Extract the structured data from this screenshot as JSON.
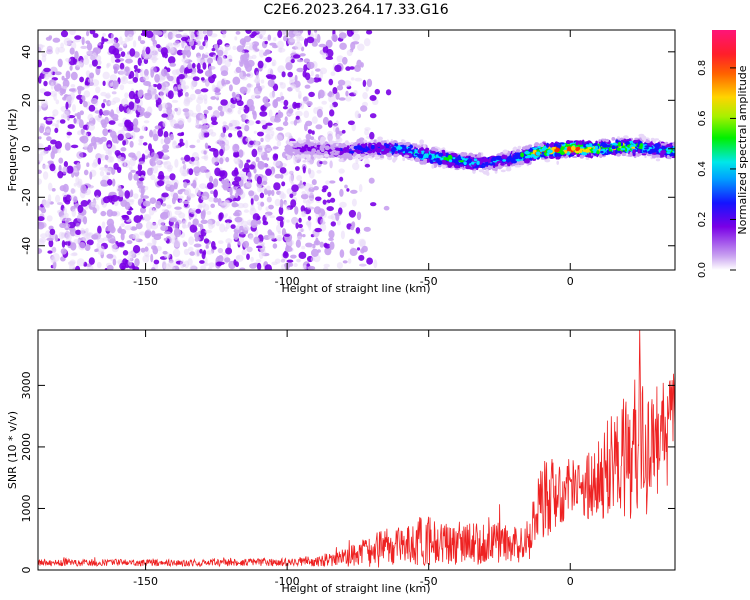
{
  "figure": {
    "title": "C2E6.2023.264.17.33.G16"
  },
  "chart_data": [
    {
      "type": "heatmap",
      "xlabel": "Height of straight line (km)",
      "ylabel": "Frequency (Hz)",
      "xlim": [
        -188,
        37
      ],
      "ylim": [
        -50,
        49
      ],
      "x_ticks": [
        -150,
        -100,
        -50,
        0
      ],
      "x_tick_labels": [
        "-150",
        "-100",
        "-50",
        "0"
      ],
      "y_ticks": [
        -40,
        -20,
        0,
        20,
        40
      ],
      "y_tick_labels": [
        "-40",
        "-20",
        "0",
        "20",
        "40"
      ],
      "colormap": [
        "#e8d8f8",
        "#c8a0f0",
        "#7a00e6",
        "#1414ff",
        "#00e0ff",
        "#00f000",
        "#ffd400",
        "#ff3000",
        "#ff1470"
      ],
      "colorbar": {
        "label": "Normalized spectral amplitude",
        "range": [
          0,
          0.95
        ],
        "ticks": [
          0.0,
          0.2,
          0.4,
          0.6,
          0.8
        ],
        "tick_labels": [
          "0.0",
          "0.2",
          "0.4",
          "0.6",
          "0.8"
        ]
      },
      "noise_region_km": [
        -188,
        -68
      ],
      "signal_band": {
        "x": [
          -100,
          -90,
          -80,
          -70,
          -60,
          -50,
          -40,
          -30,
          -20,
          -10,
          0,
          10,
          20,
          30,
          37
        ],
        "center_hz": [
          0,
          0,
          -1,
          0,
          0,
          -3,
          -5,
          -6,
          -4,
          -1,
          0,
          0,
          1,
          0,
          -1
        ],
        "peak_amplitude": [
          0.22,
          0.3,
          0.35,
          0.45,
          0.5,
          0.6,
          0.62,
          0.5,
          0.45,
          0.85,
          0.9,
          0.7,
          0.75,
          0.5,
          0.6
        ]
      }
    },
    {
      "type": "line",
      "xlabel": "Height of straight line (km)",
      "ylabel": "SNR (10 * v/v)",
      "xlim": [
        -188,
        37
      ],
      "ylim": [
        0,
        3900
      ],
      "x_ticks": [
        -150,
        -100,
        -50,
        0
      ],
      "x_tick_labels": [
        "-150",
        "-100",
        "-50",
        "0"
      ],
      "y_ticks": [
        0,
        1000,
        2000,
        3000
      ],
      "y_tick_labels": [
        "0",
        "1000",
        "2000",
        "3000"
      ],
      "series": [
        {
          "color": "#ee2222",
          "envelope": {
            "x": [
              -188,
              -160,
              -130,
              -100,
              -90,
              -80,
              -70,
              -60,
              -50,
              -40,
              -30,
              -20,
              -15,
              -10,
              -5,
              0,
              5,
              10,
              15,
              20,
              25,
              30,
              37
            ],
            "mean": [
              120,
              120,
              115,
              130,
              150,
              200,
              300,
              420,
              480,
              400,
              450,
              400,
              480,
              1100,
              1200,
              1350,
              1350,
              1500,
              1700,
              1800,
              2000,
              2100,
              2300
            ],
            "amplitude": [
              60,
              55,
              55,
              65,
              90,
              140,
              280,
              350,
              420,
              320,
              380,
              300,
              350,
              650,
              550,
              500,
              550,
              650,
              900,
              1100,
              1250,
              1000,
              900
            ]
          }
        }
      ]
    }
  ]
}
